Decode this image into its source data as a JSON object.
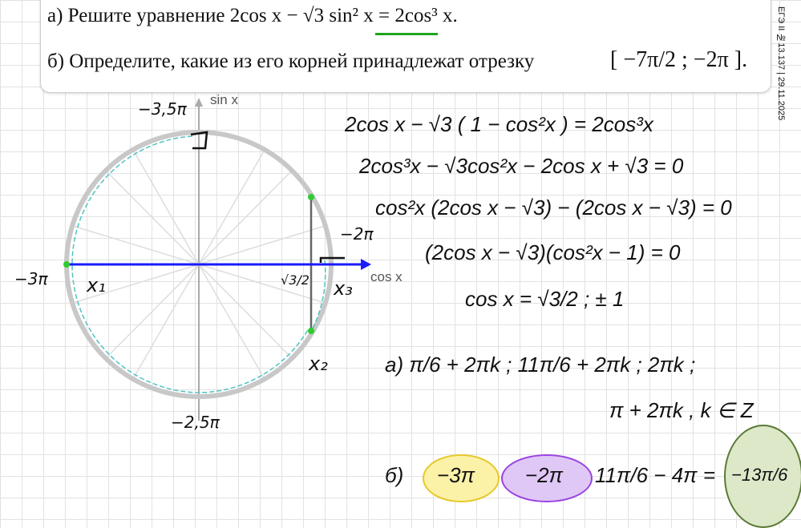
{
  "task": {
    "a": "а) Решите уравнение   2cos x − √3 sin² x = 2cos³ x.",
    "b": "б) Определите, какие из его корней принадлежат отрезку",
    "interval": "[ −7π/2 ;  −2π ].",
    "side_label": "ЕГЭ II №13.137 | 29.11.2025",
    "underline_color": "#1fa51f"
  },
  "circle": {
    "axis_sin": "sin x",
    "axis_cos": "cos x",
    "label_top": "−3,5π",
    "label_right": "−2π",
    "label_left": "−3π",
    "label_bottom": "−2,5π",
    "x1": "x₁",
    "x2": "x₂",
    "x3": "x₃",
    "sqrt3_2": "√3/2",
    "point_color": "#2ecc2e",
    "axis_color": "#1a1aff",
    "arc_color": "#4fc3c3"
  },
  "solution": {
    "line1": "2cos x − √3 ( 1 − cos²x ) = 2cos³x",
    "line2": "2cos³x − √3cos²x − 2cos x + √3 = 0",
    "line3": "cos²x (2cos x − √3) − (2cos x − √3) = 0",
    "line4": "(2cos x − √3)(cos²x − 1) = 0",
    "line5": "cos x = √3/2 ;  ± 1",
    "line6": "а)  π/6 + 2πk ;  11π/6 + 2πk ;  2πk ;",
    "line7": "π + 2πk ,  k ∈ Z",
    "line8_prefix": "б)",
    "ans1": "−3π",
    "ans2": "−2π",
    "ans3": "11π/6 − 4π =",
    "ans4": "−13π/6"
  }
}
